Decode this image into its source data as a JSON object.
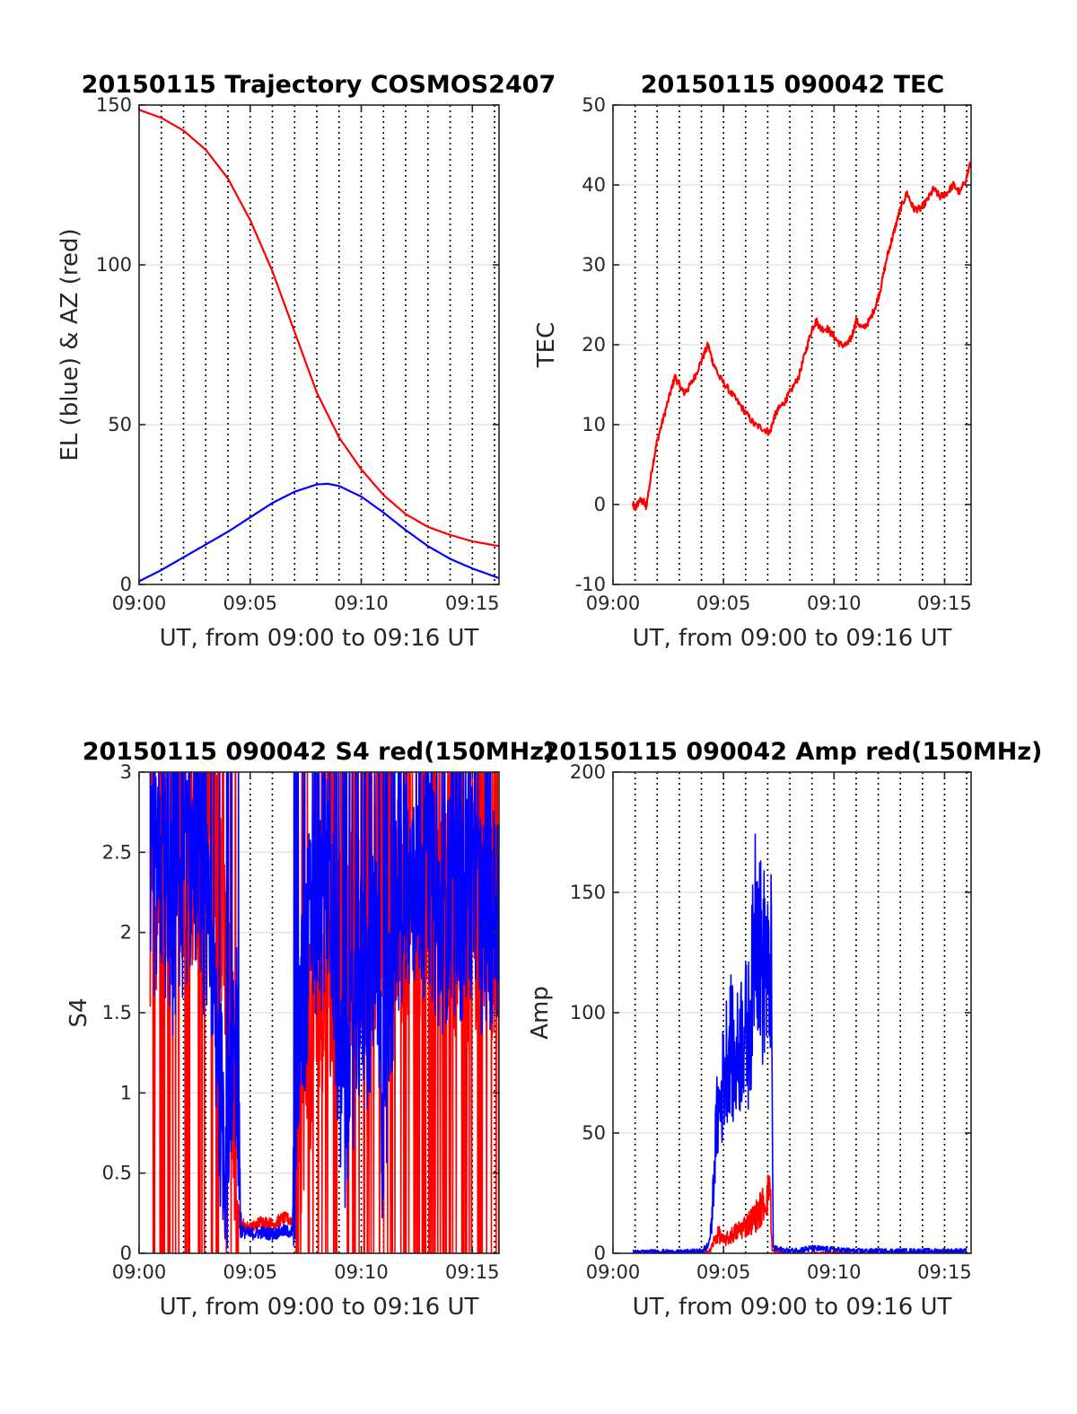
{
  "chart_data": [
    {
      "type": "line",
      "title": "20150115 Trajectory COSMOS2407",
      "xlabel": "UT, from 09:00 to 09:16 UT",
      "ylabel": "EL (blue) & AZ (red)",
      "xlim": [
        0,
        16.2
      ],
      "ylim": [
        0,
        150
      ],
      "xticks": [
        0,
        5,
        10,
        15
      ],
      "xtick_labels": [
        "09:00",
        "09:05",
        "09:10",
        "09:15"
      ],
      "yticks": [
        0,
        50,
        100,
        150
      ],
      "ytick_labels": [
        "0",
        "50",
        "100",
        "150"
      ],
      "grid": true,
      "series": [
        {
          "color": "#ff0000",
          "x": [
            0.0,
            1,
            2,
            3,
            4,
            5,
            6,
            7,
            8,
            9,
            10,
            11,
            12,
            13,
            14,
            15,
            16.2
          ],
          "y": [
            148.5,
            146,
            142,
            136,
            127,
            114,
            98,
            79,
            60,
            46,
            36,
            28,
            22,
            18,
            15.5,
            13.5,
            12
          ]
        },
        {
          "color": "#0000ff",
          "x": [
            0.0,
            1,
            2,
            3,
            4,
            5,
            6,
            7,
            8,
            8.5,
            9,
            10,
            11,
            12,
            13,
            14,
            15,
            16.2
          ],
          "y": [
            1,
            4.5,
            8.5,
            12.5,
            16.5,
            21,
            25.5,
            29,
            31.3,
            31.5,
            30.8,
            27.5,
            22.5,
            17,
            12,
            8,
            5,
            2
          ]
        }
      ]
    },
    {
      "type": "line",
      "title": "20150115 090042 TEC",
      "xlabel": "UT, from 09:00 to 09:16 UT",
      "ylabel": "TEC",
      "xlim": [
        0,
        16.2
      ],
      "ylim": [
        -10,
        50
      ],
      "xticks": [
        0,
        5,
        10,
        15
      ],
      "xtick_labels": [
        "09:00",
        "09:05",
        "09:10",
        "09:15"
      ],
      "yticks": [
        -10,
        0,
        10,
        20,
        30,
        40,
        50
      ],
      "ytick_labels": [
        "-10",
        "0",
        "10",
        "20",
        "30",
        "40",
        "50"
      ],
      "grid": true,
      "series": [
        {
          "color": "#ff0000",
          "x": [
            0.9,
            1.0,
            1.2,
            1.4,
            1.5,
            1.8,
            2.0,
            2.3,
            2.6,
            2.8,
            3.0,
            3.2,
            3.4,
            3.7,
            4.0,
            4.3,
            4.5,
            4.8,
            5.2,
            5.6,
            6.0,
            6.4,
            6.8,
            7.1,
            7.3,
            7.5,
            7.8,
            8.0,
            8.4,
            8.7,
            9.0,
            9.2,
            9.4,
            9.7,
            10.0,
            10.3,
            10.6,
            10.8,
            11.0,
            11.3,
            11.6,
            11.9,
            12.1,
            12.4,
            12.6,
            12.8,
            13.0,
            13.3,
            13.6,
            13.9,
            14.2,
            14.5,
            14.8,
            15.1,
            15.4,
            15.7,
            16.0,
            16.2
          ],
          "y": [
            0,
            -0.5,
            0.5,
            0.3,
            -0.3,
            5,
            8,
            11,
            14,
            16,
            15,
            14,
            14.5,
            16,
            18,
            20,
            18,
            16,
            14.5,
            13,
            11.5,
            10,
            9.5,
            9,
            11,
            12,
            13,
            14,
            16,
            19,
            22,
            23,
            22,
            22,
            21,
            20,
            20,
            21,
            23,
            22,
            23,
            25,
            27,
            31,
            33,
            35,
            37,
            39,
            37,
            37,
            38,
            39.5,
            38.5,
            39,
            40,
            39,
            41,
            43
          ]
        }
      ]
    },
    {
      "type": "line",
      "title": "20150115 090042 S4 red(150MHz)",
      "xlabel": "UT, from 09:00 to 09:16 UT",
      "ylabel": "S4",
      "xlim": [
        0,
        16.2
      ],
      "ylim": [
        0,
        3
      ],
      "xticks": [
        0,
        5,
        10,
        15
      ],
      "xtick_labels": [
        "09:00",
        "09:05",
        "09:10",
        "09:15"
      ],
      "yticks": [
        0,
        0.5,
        1,
        1.5,
        2,
        2.5,
        3
      ],
      "ytick_labels": [
        "0",
        "0.5",
        "1",
        "1.5",
        "2",
        "2.5",
        "3"
      ],
      "grid": true,
      "series": [
        {
          "color": "#ff0000",
          "x": [
            0.5,
            1.5,
            2.5,
            3.0,
            3.5,
            3.8,
            4.0,
            4.2,
            4.5,
            5.0,
            5.5,
            6.0,
            6.5,
            7.0,
            7.3,
            7.5,
            8.0,
            8.5,
            9.0,
            9.5,
            10.0,
            10.5,
            11.0,
            11.5,
            12.0,
            12.5,
            13.0,
            13.5,
            14.0,
            14.5,
            15.0,
            15.5,
            16.2
          ],
          "y": [
            2.2,
            2.6,
            2.4,
            2.8,
            2.5,
            2.0,
            1.5,
            1.2,
            0.2,
            0.15,
            0.2,
            0.18,
            0.22,
            0.2,
            0.9,
            1.2,
            1.5,
            1.7,
            1.8,
            2.0,
            1.9,
            2.1,
            2.0,
            2.2,
            2.0,
            2.1,
            2.2,
            2.0,
            2.1,
            1.9,
            2.0,
            2.1,
            1.8
          ]
        },
        {
          "color": "#0000ff",
          "x": [
            0.5,
            1.0,
            1.5,
            2.0,
            2.5,
            3.0,
            3.3,
            3.5,
            3.7,
            4.0,
            4.2,
            4.4,
            4.6,
            5.0,
            5.5,
            6.0,
            6.5,
            6.9,
            7.1,
            7.4,
            7.8,
            8.1,
            8.4,
            8.7,
            9.0,
            9.3,
            9.6,
            10.0,
            10.3,
            10.6,
            11.0,
            11.5,
            12.0,
            12.5,
            13.0,
            13.5,
            14.0,
            14.5,
            15.0,
            15.5,
            16.2
          ],
          "y": [
            2.2,
            2.4,
            2.0,
            2.3,
            2.5,
            2.1,
            1.5,
            1.2,
            0.9,
            0.55,
            0.9,
            1.4,
            0.14,
            0.12,
            0.13,
            0.12,
            0.14,
            0.13,
            1.2,
            1.6,
            2.2,
            2.0,
            2.4,
            2.2,
            1.0,
            0.9,
            1.3,
            1.7,
            1.5,
            2.0,
            0.7,
            2.0,
            2.3,
            2.1,
            2.4,
            2.0,
            2.2,
            2.1,
            2.3,
            2.0,
            2.2
          ]
        }
      ]
    },
    {
      "type": "line",
      "title": "20150115 090042 Amp red(150MHz)",
      "xlabel": "UT, from 09:00 to 09:16 UT",
      "ylabel": "Amp",
      "xlim": [
        0,
        16.2
      ],
      "ylim": [
        0,
        200
      ],
      "xticks": [
        0,
        5,
        10,
        15
      ],
      "xtick_labels": [
        "09:00",
        "09:05",
        "09:10",
        "09:15"
      ],
      "yticks": [
        0,
        50,
        100,
        150,
        200
      ],
      "ytick_labels": [
        "0",
        "50",
        "100",
        "150",
        "200"
      ],
      "grid": true,
      "series": [
        {
          "color": "#ff0000",
          "x": [
            0.9,
            2,
            3,
            4,
            4.4,
            4.6,
            4.8,
            5.0,
            5.3,
            5.6,
            5.9,
            6.2,
            6.5,
            6.8,
            7.0,
            7.1,
            7.2,
            8,
            10,
            12,
            14,
            16
          ],
          "y": [
            0,
            0,
            0,
            0,
            1,
            6,
            8,
            5,
            7,
            9,
            11,
            13,
            16,
            20,
            24,
            30,
            1,
            0,
            0,
            0,
            0,
            0
          ]
        },
        {
          "color": "#0000ff",
          "x": [
            0.9,
            2,
            3,
            4,
            4.3,
            4.45,
            4.55,
            4.7,
            4.9,
            5.1,
            5.3,
            5.5,
            5.7,
            5.9,
            6.1,
            6.3,
            6.45,
            6.6,
            6.75,
            6.9,
            7.05,
            7.15,
            7.25,
            8,
            9,
            10,
            11,
            12,
            13,
            14,
            15,
            16
          ],
          "y": [
            0.5,
            0.8,
            0.6,
            1,
            3,
            10,
            30,
            55,
            65,
            80,
            90,
            75,
            85,
            95,
            88,
            110,
            150,
            135,
            115,
            125,
            105,
            128,
            2,
            1,
            2,
            1.5,
            1,
            1,
            1,
            1,
            1,
            1
          ]
        }
      ]
    }
  ]
}
